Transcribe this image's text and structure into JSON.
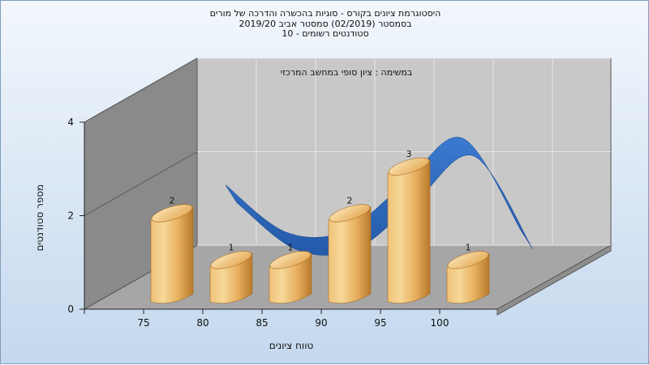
{
  "header": {
    "title_line1": "היסטוגרמת ציונים בקורס - סוגיות בהכשרה והדרכה של מורים",
    "title_line2": "בסמסטר  (02/2019)  סמסטר אביב 2019/20",
    "title_line3": "סטודנטים רשומים - 10"
  },
  "chart_data": {
    "type": "bar",
    "categories": [
      "75",
      "80",
      "85",
      "90",
      "95",
      "100"
    ],
    "values": [
      2,
      1,
      1,
      2,
      3,
      1
    ],
    "data_labels": [
      "2",
      "1",
      "1",
      "2",
      "3",
      "1"
    ],
    "xlabel": "טווח ציונים",
    "ylabel": "מספר סטודנטים",
    "ylim": [
      0,
      4
    ],
    "yticks": [
      "0",
      "2",
      "4"
    ],
    "annotation": "במשימה : ציון סופי במחשב המרכזי",
    "trend_curve": "smooth blue ribbon over the bars",
    "grid": true,
    "colors": {
      "bar_light": "#f6d898",
      "bar_mid": "#e8b060",
      "bar_dark": "#b77a2a",
      "trend": "#2f6cc4",
      "back_wall": "#c8c8c8",
      "side_wall": "#8a8a8a",
      "floor": "#a6a6a6"
    }
  }
}
